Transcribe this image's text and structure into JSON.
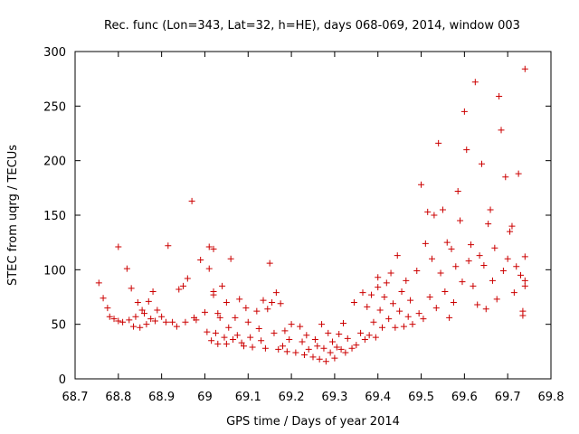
{
  "chart_data": {
    "type": "scatter",
    "title": "Rec. func (Lon=343, Lat=32, h=HE), days 068-069, 2014, window 003",
    "xlabel": "GPS time / Days of year 2014",
    "ylabel": "STEC from uqrg / TECUs",
    "xlim": [
      68.7,
      69.8
    ],
    "ylim": [
      0,
      300
    ],
    "xticks": [
      "68.7",
      "68.8",
      "68.9",
      "69",
      "69.1",
      "69.2",
      "69.3",
      "69.4",
      "69.5",
      "69.6",
      "69.7",
      "69.8"
    ],
    "yticks": [
      "0",
      "50",
      "100",
      "150",
      "200",
      "250",
      "300"
    ],
    "grid": false,
    "marker": "plus",
    "color": "#cc0000",
    "series": [
      {
        "name": "",
        "points": [
          [
            68.755,
            88
          ],
          [
            68.765,
            74
          ],
          [
            68.775,
            65
          ],
          [
            68.78,
            57
          ],
          [
            68.79,
            55
          ],
          [
            68.8,
            121
          ],
          [
            68.8,
            53
          ],
          [
            68.81,
            52
          ],
          [
            68.82,
            101
          ],
          [
            68.825,
            54
          ],
          [
            68.83,
            83
          ],
          [
            68.835,
            48
          ],
          [
            68.84,
            57
          ],
          [
            68.845,
            70
          ],
          [
            68.85,
            47
          ],
          [
            68.855,
            63
          ],
          [
            68.86,
            60
          ],
          [
            68.865,
            50
          ],
          [
            68.87,
            71
          ],
          [
            68.875,
            55
          ],
          [
            68.88,
            80
          ],
          [
            68.885,
            53
          ],
          [
            68.89,
            63
          ],
          [
            68.9,
            57
          ],
          [
            68.91,
            52
          ],
          [
            68.915,
            122
          ],
          [
            68.925,
            52
          ],
          [
            68.935,
            48
          ],
          [
            68.94,
            82
          ],
          [
            68.95,
            85
          ],
          [
            68.955,
            52
          ],
          [
            68.96,
            92
          ],
          [
            68.97,
            163
          ],
          [
            68.975,
            56
          ],
          [
            68.98,
            54
          ],
          [
            68.99,
            109
          ],
          [
            69.0,
            61
          ],
          [
            69.005,
            43
          ],
          [
            69.01,
            121
          ],
          [
            69.01,
            101
          ],
          [
            69.015,
            35
          ],
          [
            69.02,
            119
          ],
          [
            69.02,
            80
          ],
          [
            69.02,
            77
          ],
          [
            69.025,
            42
          ],
          [
            69.03,
            32
          ],
          [
            69.03,
            60
          ],
          [
            69.035,
            56
          ],
          [
            69.04,
            85
          ],
          [
            69.045,
            38
          ],
          [
            69.05,
            70
          ],
          [
            69.05,
            32
          ],
          [
            69.055,
            47
          ],
          [
            69.06,
            110
          ],
          [
            69.065,
            36
          ],
          [
            69.07,
            56
          ],
          [
            69.075,
            40
          ],
          [
            69.08,
            73
          ],
          [
            69.085,
            33
          ],
          [
            69.09,
            30
          ],
          [
            69.095,
            65
          ],
          [
            69.1,
            52
          ],
          [
            69.105,
            38
          ],
          [
            69.11,
            29
          ],
          [
            69.12,
            62
          ],
          [
            69.125,
            46
          ],
          [
            69.13,
            35
          ],
          [
            69.135,
            72
          ],
          [
            69.14,
            28
          ],
          [
            69.145,
            64
          ],
          [
            69.15,
            106
          ],
          [
            69.155,
            70
          ],
          [
            69.16,
            42
          ],
          [
            69.165,
            79
          ],
          [
            69.17,
            27
          ],
          [
            69.175,
            69
          ],
          [
            69.18,
            30
          ],
          [
            69.185,
            44
          ],
          [
            69.19,
            25
          ],
          [
            69.195,
            36
          ],
          [
            69.2,
            50
          ],
          [
            69.21,
            24
          ],
          [
            69.22,
            48
          ],
          [
            69.225,
            34
          ],
          [
            69.23,
            22
          ],
          [
            69.235,
            40
          ],
          [
            69.24,
            27
          ],
          [
            69.25,
            20
          ],
          [
            69.255,
            36
          ],
          [
            69.26,
            30
          ],
          [
            69.265,
            18
          ],
          [
            69.27,
            50
          ],
          [
            69.275,
            28
          ],
          [
            69.28,
            16
          ],
          [
            69.285,
            42
          ],
          [
            69.29,
            24
          ],
          [
            69.295,
            34
          ],
          [
            69.3,
            19
          ],
          [
            69.305,
            29
          ],
          [
            69.31,
            41
          ],
          [
            69.315,
            27
          ],
          [
            69.32,
            51
          ],
          [
            69.325,
            24
          ],
          [
            69.33,
            37
          ],
          [
            69.34,
            28
          ],
          [
            69.345,
            70
          ],
          [
            69.35,
            31
          ],
          [
            69.36,
            42
          ],
          [
            69.365,
            79
          ],
          [
            69.37,
            36
          ],
          [
            69.375,
            66
          ],
          [
            69.38,
            40
          ],
          [
            69.385,
            77
          ],
          [
            69.39,
            52
          ],
          [
            69.395,
            38
          ],
          [
            69.4,
            93
          ],
          [
            69.4,
            84
          ],
          [
            69.405,
            63
          ],
          [
            69.41,
            47
          ],
          [
            69.415,
            75
          ],
          [
            69.42,
            88
          ],
          [
            69.425,
            55
          ],
          [
            69.43,
            97
          ],
          [
            69.435,
            69
          ],
          [
            69.44,
            47
          ],
          [
            69.445,
            113
          ],
          [
            69.45,
            62
          ],
          [
            69.455,
            80
          ],
          [
            69.46,
            48
          ],
          [
            69.465,
            90
          ],
          [
            69.47,
            57
          ],
          [
            69.475,
            72
          ],
          [
            69.48,
            50
          ],
          [
            69.49,
            99
          ],
          [
            69.495,
            60
          ],
          [
            69.5,
            178
          ],
          [
            69.505,
            55
          ],
          [
            69.51,
            124
          ],
          [
            69.515,
            153
          ],
          [
            69.52,
            75
          ],
          [
            69.525,
            110
          ],
          [
            69.53,
            150
          ],
          [
            69.535,
            65
          ],
          [
            69.54,
            216
          ],
          [
            69.545,
            97
          ],
          [
            69.55,
            155
          ],
          [
            69.555,
            80
          ],
          [
            69.56,
            125
          ],
          [
            69.565,
            56
          ],
          [
            69.57,
            119
          ],
          [
            69.575,
            70
          ],
          [
            69.58,
            103
          ],
          [
            69.585,
            172
          ],
          [
            69.59,
            145
          ],
          [
            69.595,
            89
          ],
          [
            69.6,
            245
          ],
          [
            69.605,
            210
          ],
          [
            69.61,
            108
          ],
          [
            69.615,
            123
          ],
          [
            69.62,
            85
          ],
          [
            69.625,
            272
          ],
          [
            69.63,
            68
          ],
          [
            69.635,
            113
          ],
          [
            69.64,
            197
          ],
          [
            69.645,
            104
          ],
          [
            69.65,
            64
          ],
          [
            69.655,
            142
          ],
          [
            69.66,
            155
          ],
          [
            69.665,
            90
          ],
          [
            69.67,
            120
          ],
          [
            69.675,
            73
          ],
          [
            69.68,
            259
          ],
          [
            69.685,
            228
          ],
          [
            69.69,
            99
          ],
          [
            69.695,
            185
          ],
          [
            69.7,
            110
          ],
          [
            69.705,
            135
          ],
          [
            69.71,
            140
          ],
          [
            69.715,
            79
          ],
          [
            69.72,
            103
          ],
          [
            69.725,
            188
          ],
          [
            69.73,
            95
          ],
          [
            69.735,
            62
          ],
          [
            69.74,
            284
          ],
          [
            69.74,
            112
          ],
          [
            69.74,
            90
          ],
          [
            69.74,
            85
          ],
          [
            69.735,
            58
          ]
        ]
      }
    ]
  }
}
